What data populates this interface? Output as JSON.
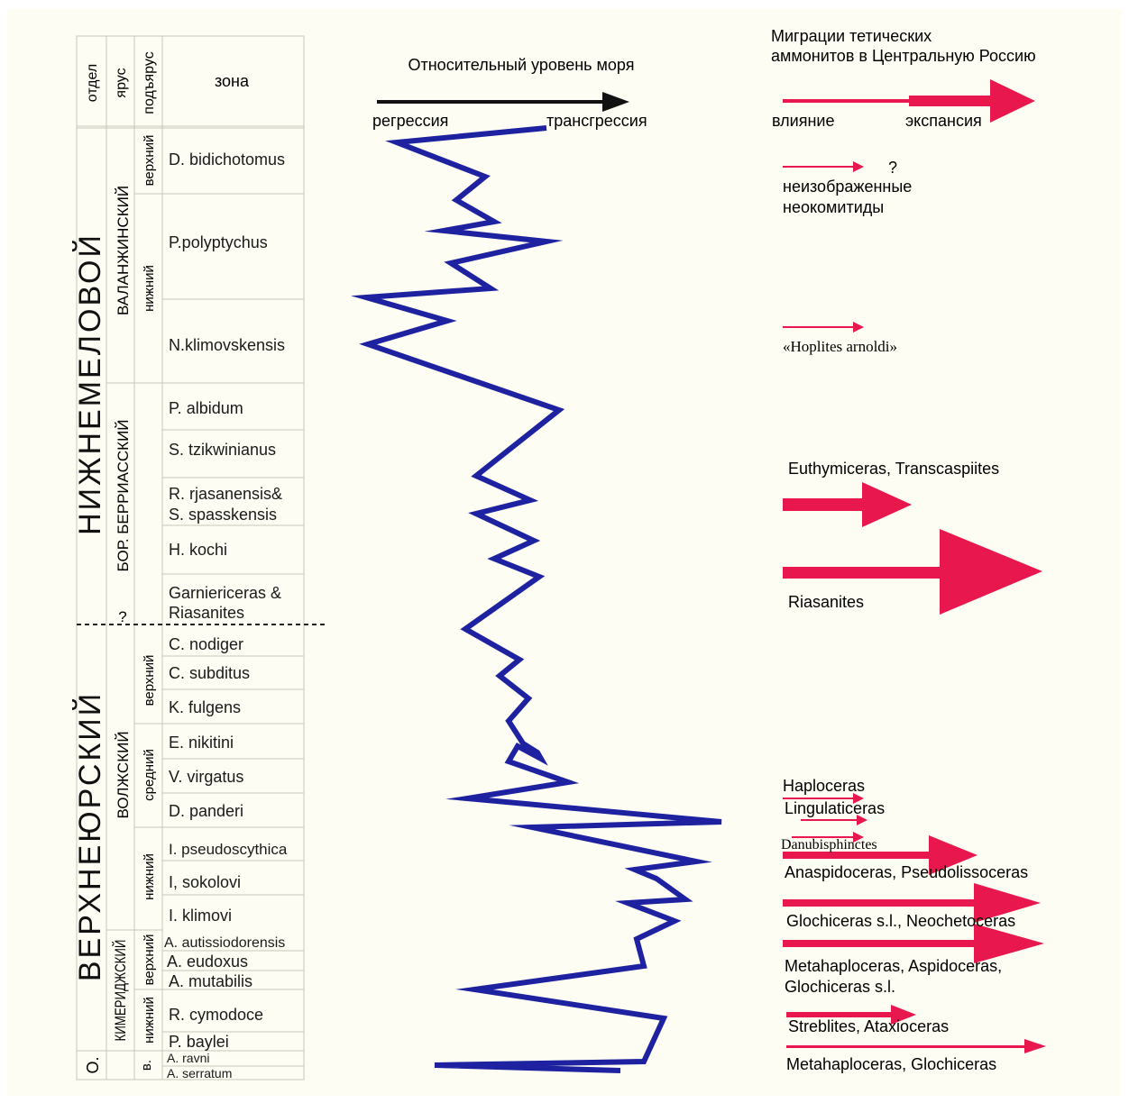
{
  "header": {
    "col_otdel": "отдел",
    "col_yarus": "ярус",
    "col_podyarus": "подъярус",
    "col_zona": "зона"
  },
  "divisions": [
    {
      "label": "НИЖНЕМЕЛОВОЙ"
    },
    {
      "label": "ВЕРХНЕЮРСКИЙ"
    },
    {
      "label": "О."
    }
  ],
  "stages": [
    {
      "label": "ВАЛАНЖИНСКИЙ"
    },
    {
      "label": "БОР. БЕРРИАССКИЙ"
    },
    {
      "label": "?"
    },
    {
      "label": "ВОЛЖСКИЙ"
    },
    {
      "label": "КИМЕРИДЖСКИЙ"
    },
    {
      "label": "в."
    }
  ],
  "substages": [
    {
      "label": "верхний"
    },
    {
      "label": "нижний"
    },
    {
      "label": "верхний"
    },
    {
      "label": "средний"
    },
    {
      "label": "нижний"
    },
    {
      "label": "верхний"
    },
    {
      "label": "нижний"
    }
  ],
  "zones": [
    [
      "D. bidichotomus"
    ],
    [
      "P.polyptychus"
    ],
    [
      "N.klimovskensis"
    ],
    [
      "P. albidum"
    ],
    [
      "S. tzikwinianus"
    ],
    [
      "R. rjasanensis&",
      "S. spasskensis"
    ],
    [
      "H. kochi"
    ],
    [
      "Garniericeras &",
      "Riasanites"
    ],
    [
      "C. nodiger"
    ],
    [
      "C. subditus"
    ],
    [
      "K. fulgens"
    ],
    [
      "E. nikitini"
    ],
    [
      "V. virgatus"
    ],
    [
      "D. panderi"
    ],
    [
      "I. pseudoscythica"
    ],
    [
      "I, sokolovi"
    ],
    [
      "I. klimovi"
    ],
    [
      "A. autissiodorensis"
    ],
    [
      "A. eudoxus"
    ],
    [
      "A. mutabilis"
    ],
    [
      "R. cymodoce"
    ],
    [
      "P. baylei"
    ],
    [
      "A. ravni"
    ],
    [
      "A. serratum"
    ]
  ],
  "sea_level": {
    "title": "Относительный уровень моря",
    "left_label": "регрессия",
    "right_label": "трансгрессия"
  },
  "migration": {
    "title_line1": "Миграции  тетических",
    "title_line2": "аммонитов в Центральную Россию",
    "left_label": "влияние",
    "right_label": "экспансия",
    "question_mark": "?",
    "labels": [
      "неизображенные",
      "неокомитиды",
      "«Hoplites arnoldi»",
      "Euthymiceras, Transcaspiites",
      "Riasanites",
      "Haploceras",
      "Lingulaticeras",
      "Danubisphinctes",
      "Anaspidoceras, Pseudolissoceras",
      "Glochiceras  s.l., Neochetoceras",
      "Metahaploceras, Aspidoceras,",
      "Glochiceras s.l.",
      "Streblites, Ataxioceras",
      "Metahaploceras, Glochiceras"
    ]
  },
  "colors": {
    "curve": "#1e22a0",
    "arrow": "#e8174e",
    "axis_arrow": "#111111",
    "panel": "#fdfdf4",
    "grid": "#c8c8b8"
  }
}
